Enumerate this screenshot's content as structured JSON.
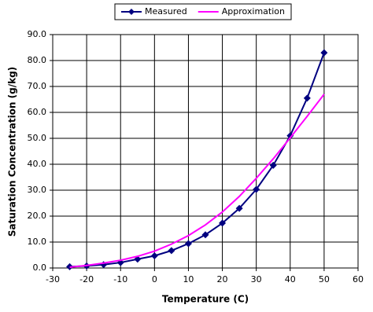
{
  "chart_data": {
    "type": "line",
    "x_label": "Temperature (C)",
    "y_label": "Saturation Concentration (g/kg)",
    "x": [
      -25,
      -20,
      -15,
      -10,
      -5,
      0,
      5,
      10,
      15,
      20,
      25,
      30,
      35,
      40,
      45,
      50
    ],
    "series": [
      {
        "name": "Measured",
        "color": "#000080",
        "marker": "diamond",
        "values": [
          0.5,
          0.8,
          1.3,
          2.1,
          3.4,
          4.7,
          6.7,
          9.4,
          12.8,
          17.3,
          23.0,
          30.3,
          39.6,
          51.0,
          65.5,
          83.0
        ]
      },
      {
        "name": "Approximation",
        "color": "#ff00ff",
        "values": [
          0.3,
          1.0,
          1.9,
          3.0,
          4.5,
          6.5,
          9.2,
          12.5,
          16.6,
          21.6,
          27.6,
          34.6,
          42.1,
          50.2,
          58.5,
          67.0
        ]
      }
    ],
    "xlim": [
      -30,
      60
    ],
    "xticks": [
      -30,
      -20,
      -10,
      0,
      10,
      20,
      30,
      40,
      50,
      60
    ],
    "ylim": [
      0,
      90
    ],
    "yticks": [
      {
        "value": 0,
        "label": "0.0"
      },
      {
        "value": 10,
        "label": "10.0"
      },
      {
        "value": 20,
        "label": "20.0"
      },
      {
        "value": 30,
        "label": "30.0"
      },
      {
        "value": 40,
        "label": "40.0"
      },
      {
        "value": 50,
        "label": "50.0"
      },
      {
        "value": 60,
        "label": "60.0"
      },
      {
        "value": 70,
        "label": "70.0"
      },
      {
        "value": 80,
        "label": "80.0"
      },
      {
        "value": 90,
        "label": "90.0"
      }
    ],
    "grid": true,
    "legend": "top"
  }
}
